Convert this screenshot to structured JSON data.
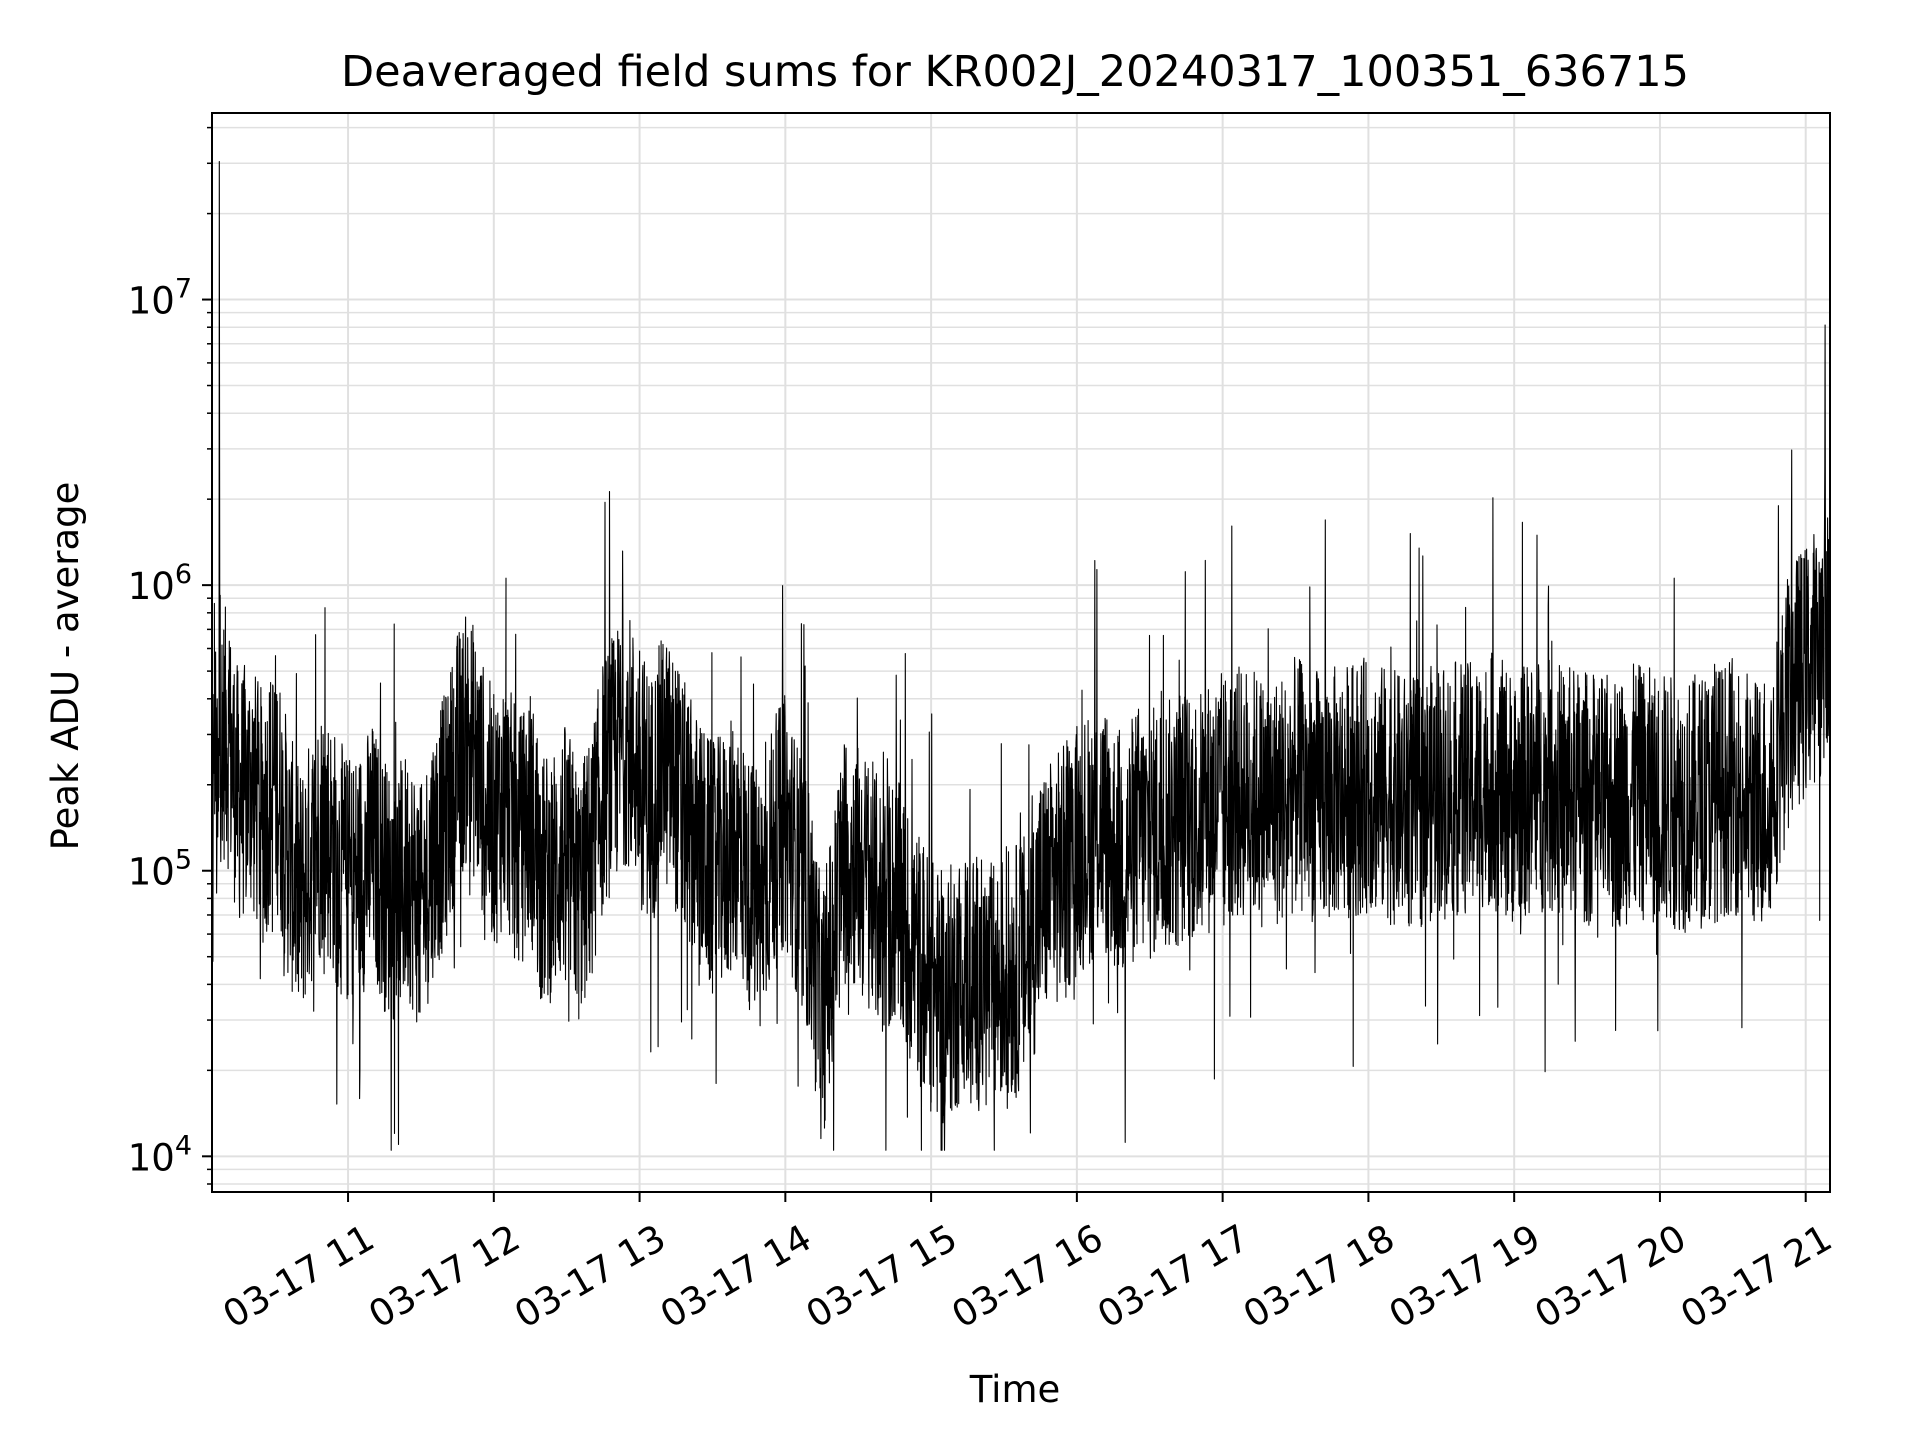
{
  "chart_data": {
    "type": "line",
    "title": "Deaveraged field sums for KR002J_20240317_100351_636715",
    "xlabel": "Time",
    "ylabel": "Peak ADU - average",
    "yscale": "log",
    "xlim": [
      "03-17 10:04",
      "03-17 21:10"
    ],
    "ylim": [
      7500,
      45000000
    ],
    "grid": true,
    "x_ticks": [
      "03-17 11",
      "03-17 12",
      "03-17 13",
      "03-17 14",
      "03-17 15",
      "03-17 16",
      "03-17 17",
      "03-17 18",
      "03-17 19",
      "03-17 20",
      "03-17 21"
    ],
    "x_tick_hours": [
      11,
      12,
      13,
      14,
      15,
      16,
      17,
      18,
      19,
      20,
      21
    ],
    "y_ticks": [
      {
        "value": 10000,
        "base": "10",
        "exp": "4"
      },
      {
        "value": 100000,
        "base": "10",
        "exp": "5"
      },
      {
        "value": 1000000,
        "base": "10",
        "exp": "6"
      },
      {
        "value": 10000000,
        "base": "10",
        "exp": "7"
      }
    ],
    "line_color": "#000000",
    "grid_color": "#e0e0e0",
    "series": [
      {
        "x": [
          "03-17 10:04",
          "03-17 10:05",
          "03-17 10:06",
          "03-17 10:07",
          "03-17 10:10",
          "03-17 10:15",
          "03-17 10:20",
          "03-17 10:25",
          "03-17 10:30",
          "03-17 10:35",
          "03-17 10:40",
          "03-17 10:45",
          "03-17 10:50",
          "03-17 10:55",
          "03-17 11:00",
          "03-17 11:05",
          "03-17 11:10",
          "03-17 11:15",
          "03-17 11:20",
          "03-17 11:25",
          "03-17 11:30",
          "03-17 11:35",
          "03-17 11:40",
          "03-17 11:45",
          "03-17 11:50",
          "03-17 11:55",
          "03-17 12:00",
          "03-17 12:05",
          "03-17 12:10",
          "03-17 12:15",
          "03-17 12:20",
          "03-17 12:25",
          "03-17 12:30",
          "03-17 12:35",
          "03-17 12:40",
          "03-17 12:45",
          "03-17 12:50",
          "03-17 12:55",
          "03-17 13:00",
          "03-17 13:05",
          "03-17 13:10",
          "03-17 13:15",
          "03-17 13:20",
          "03-17 13:25",
          "03-17 13:30",
          "03-17 13:35",
          "03-17 13:40",
          "03-17 13:45",
          "03-17 13:50",
          "03-17 13:55",
          "03-17 14:00",
          "03-17 14:05",
          "03-17 14:10",
          "03-17 14:15",
          "03-17 14:20",
          "03-17 14:25",
          "03-17 14:30",
          "03-17 14:35",
          "03-17 14:40",
          "03-17 14:45",
          "03-17 14:50",
          "03-17 14:55",
          "03-17 15:00",
          "03-17 15:05",
          "03-17 15:10",
          "03-17 15:15",
          "03-17 15:20",
          "03-17 15:25",
          "03-17 15:30",
          "03-17 15:35",
          "03-17 15:40",
          "03-17 15:45",
          "03-17 15:50",
          "03-17 15:55",
          "03-17 16:00",
          "03-17 16:05",
          "03-17 16:10",
          "03-17 16:15",
          "03-17 16:20",
          "03-17 16:25",
          "03-17 16:30",
          "03-17 16:35",
          "03-17 16:40",
          "03-17 16:45",
          "03-17 16:50",
          "03-17 16:55",
          "03-17 17:00",
          "03-17 17:10",
          "03-17 17:20",
          "03-17 17:30",
          "03-17 17:40",
          "03-17 17:50",
          "03-17 18:00",
          "03-17 18:10",
          "03-17 18:20",
          "03-17 18:30",
          "03-17 18:40",
          "03-17 18:50",
          "03-17 19:00",
          "03-17 19:10",
          "03-17 19:20",
          "03-17 19:30",
          "03-17 19:40",
          "03-17 19:50",
          "03-17 20:00",
          "03-17 20:10",
          "03-17 20:20",
          "03-17 20:30",
          "03-17 20:40",
          "03-17 20:45",
          "03-17 20:50",
          "03-17 20:55",
          "03-17 21:00",
          "03-17 21:05",
          "03-17 21:08",
          "03-17 21:10"
        ],
        "y": [
          40000,
          400000,
          150000,
          28000000,
          300000,
          180000,
          200000,
          150000,
          220000,
          120000,
          80000,
          110000,
          150000,
          110000,
          90000,
          100000,
          120000,
          90000,
          80000,
          100000,
          70000,
          120000,
          150000,
          250000,
          300000,
          200000,
          150000,
          180000,
          120000,
          160000,
          90000,
          100000,
          120000,
          80000,
          110000,
          200000,
          250000,
          300000,
          220000,
          180000,
          250000,
          200000,
          150000,
          120000,
          100000,
          110000,
          130000,
          90000,
          80000,
          120000,
          150000,
          100000,
          70000,
          30000,
          60000,
          120000,
          100000,
          90000,
          70000,
          80000,
          60000,
          50000,
          40000,
          35000,
          40000,
          45000,
          40000,
          38000,
          42000,
          45000,
          50000,
          80000,
          90000,
          100000,
          120000,
          130000,
          150000,
          120000,
          110000,
          140000,
          130000,
          150000,
          140000,
          160000,
          150000,
          170000,
          180000,
          190000,
          170000,
          200000,
          180000,
          190000,
          200000,
          180000,
          170000,
          200000,
          190000,
          210000,
          180000,
          200000,
          190000,
          180000,
          170000,
          190000,
          180000,
          170000,
          180000,
          200000,
          170000,
          190000,
          300000,
          450000,
          500000,
          600000,
          10000000,
          700000
        ]
      }
    ]
  }
}
